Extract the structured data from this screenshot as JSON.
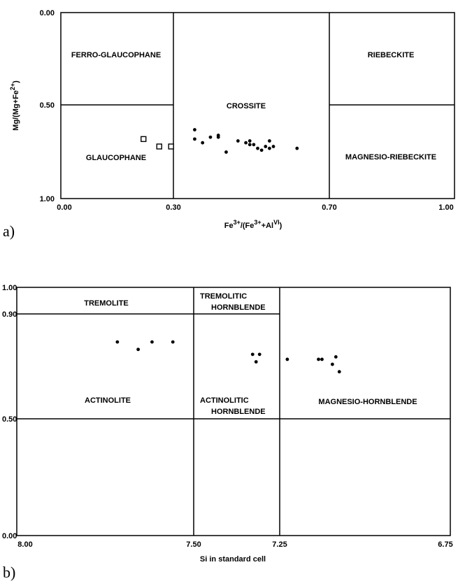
{
  "chart_data": [
    {
      "type": "scatter",
      "panel_label": "a)",
      "xlabel": "Fe3+/(Fe3++AlVI)",
      "xlabel_parts": {
        "a": "Fe",
        "b": "3+",
        "c": "/(Fe",
        "d": "3+",
        "e": "+Al",
        "f": "VI",
        "g": ")"
      },
      "ylabel": "Mg/(Mg+Fe2+)",
      "ylabel_parts": {
        "a": "Mg/(Mg+Fe",
        "b": "2+",
        "c": ")"
      },
      "xlim": [
        0.0,
        1.0
      ],
      "ylim": [
        0.0,
        1.0
      ],
      "y_inverted": true,
      "x_tick_labels": [
        "0.00",
        "0.30",
        "0.70",
        "1.00"
      ],
      "y_tick_labels": [
        "0.00",
        "0.50",
        "1.00"
      ],
      "regions": [
        "FERRO-GLAUCOPHANE",
        "GLAUCOPHANE",
        "CROSSITE",
        "RIEBECKITE",
        "MAGNESIO-RIEBECKITE"
      ],
      "series": [
        {
          "marker": "open-square",
          "points": [
            [
              0.21,
              0.68
            ],
            [
              0.25,
              0.72
            ],
            [
              0.28,
              0.72
            ]
          ]
        },
        {
          "marker": "filled-circle",
          "points": [
            [
              0.34,
              0.63
            ],
            [
              0.34,
              0.68
            ],
            [
              0.36,
              0.7
            ],
            [
              0.38,
              0.67
            ],
            [
              0.4,
              0.67
            ],
            [
              0.4,
              0.66
            ],
            [
              0.42,
              0.75
            ],
            [
              0.45,
              0.69
            ],
            [
              0.47,
              0.7
            ],
            [
              0.48,
              0.69
            ],
            [
              0.48,
              0.71
            ],
            [
              0.49,
              0.71
            ],
            [
              0.5,
              0.73
            ],
            [
              0.51,
              0.74
            ],
            [
              0.52,
              0.72
            ],
            [
              0.53,
              0.73
            ],
            [
              0.53,
              0.69
            ],
            [
              0.54,
              0.72
            ],
            [
              0.6,
              0.73
            ]
          ]
        }
      ]
    },
    {
      "type": "scatter",
      "panel_label": "b)",
      "xlabel": "Si in standard cell",
      "ylabel": "",
      "xlim": [
        8.0,
        6.75
      ],
      "ylim": [
        0.0,
        1.0
      ],
      "x_tick_labels": [
        "8.00",
        "7.50",
        "7.25",
        "6.75"
      ],
      "y_tick_labels": [
        "0.00",
        "0.50",
        "0.90",
        "1.00"
      ],
      "regions": [
        "TREMOLITE",
        "TREMOLITIC HORNBLENDE",
        "ACTINOLITE",
        "ACTINOLITIC HORNBLENDE",
        "MAGNESIO-HORNBLENDE"
      ],
      "region_lines": {
        "TREMOLITIC HORNBLENDE": [
          "TREMOLITIC",
          "HORNBLENDE"
        ],
        "ACTINOLITIC HORNBLENDE": [
          "ACTINOLITIC",
          "HORNBLENDE"
        ]
      },
      "series": [
        {
          "marker": "filled-circle",
          "points": [
            [
              7.71,
              0.78
            ],
            [
              7.65,
              0.75
            ],
            [
              7.61,
              0.78
            ],
            [
              7.55,
              0.78
            ],
            [
              7.32,
              0.73
            ],
            [
              7.31,
              0.7
            ],
            [
              7.3,
              0.73
            ],
            [
              7.22,
              0.71
            ],
            [
              7.13,
              0.71
            ],
            [
              7.12,
              0.71
            ],
            [
              7.09,
              0.69
            ],
            [
              7.08,
              0.72
            ],
            [
              7.07,
              0.66
            ]
          ]
        }
      ]
    }
  ]
}
